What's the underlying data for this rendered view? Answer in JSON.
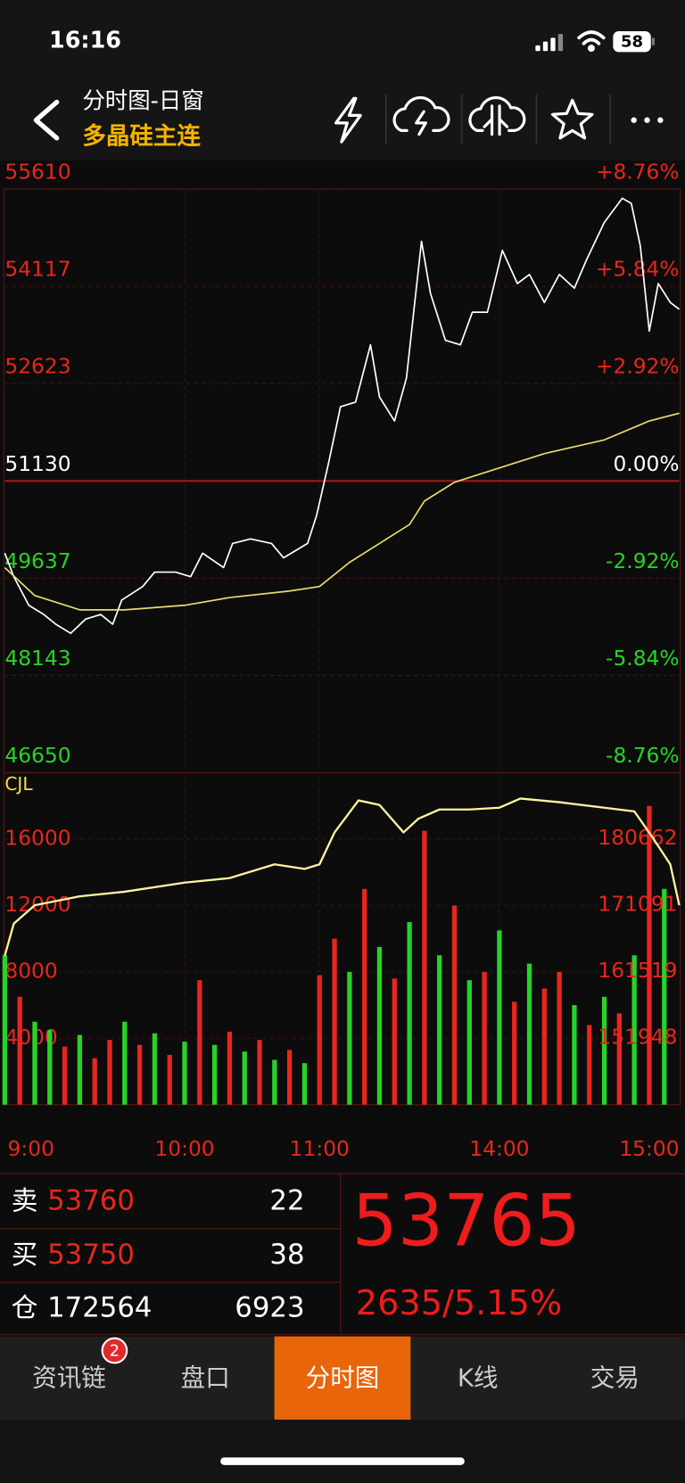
{
  "status_bar": {
    "time": "16:16",
    "battery": "58"
  },
  "header": {
    "title": "分时图-日窗",
    "subtitle": "多晶硅主连"
  },
  "chart_data": [
    {
      "type": "line",
      "xlim": [
        0,
        225
      ],
      "ylim": [
        46650,
        55610
      ],
      "yticks": [
        55610,
        54117,
        52623,
        51130,
        49637,
        48143,
        46650
      ],
      "y2lim": [
        -8.76,
        8.76
      ],
      "y2ticks": [
        {
          "value": 8.76,
          "label": "+8.76%"
        },
        {
          "value": 5.84,
          "label": "+5.84%"
        },
        {
          "value": 2.92,
          "label": "+2.92%"
        },
        {
          "value": 0,
          "label": "0.00%"
        },
        {
          "value": -2.92,
          "label": "-2.92%"
        },
        {
          "value": -5.84,
          "label": "-5.84%"
        },
        {
          "value": -8.76,
          "label": "-8.76%"
        }
      ],
      "up_color": "#e8261e",
      "down_color": "#27d327",
      "grid": true,
      "series": [
        {
          "color": "#ffffff",
          "x": [
            0,
            3,
            8,
            13,
            17,
            22,
            27,
            32,
            36,
            39,
            46,
            50,
            57,
            62,
            66,
            73,
            76,
            82,
            89,
            93,
            101,
            104,
            108,
            112,
            117,
            122,
            125,
            130,
            134,
            139,
            142,
            147,
            152,
            156,
            161,
            166,
            171,
            175,
            180,
            185,
            190,
            194,
            200,
            206,
            209,
            212,
            215,
            218,
            222,
            225
          ],
          "values": [
            50020,
            49660,
            49220,
            49080,
            48930,
            48790,
            49010,
            49080,
            48930,
            49300,
            49510,
            49730,
            49730,
            49660,
            50020,
            49800,
            50170,
            50240,
            50170,
            49950,
            50170,
            50600,
            51400,
            52270,
            52340,
            53220,
            52420,
            52050,
            52710,
            54810,
            54010,
            53290,
            53220,
            53720,
            53720,
            54670,
            54160,
            54300,
            53870,
            54300,
            54090,
            54520,
            55100,
            55470,
            55390,
            54740,
            53430,
            54160,
            53870,
            53765
          ]
        },
        {
          "color": "#e6dc6e",
          "x": [
            0,
            10,
            25,
            40,
            60,
            75,
            95,
            105,
            115,
            125,
            135,
            140,
            150,
            165,
            180,
            200,
            215,
            225
          ],
          "values": [
            49800,
            49370,
            49150,
            49150,
            49220,
            49340,
            49440,
            49510,
            49880,
            50170,
            50460,
            50820,
            51110,
            51330,
            51550,
            51760,
            52050,
            52170
          ]
        }
      ]
    },
    {
      "type": "bar",
      "ylabel": "CJL",
      "xlim": [
        0,
        225
      ],
      "xticks": [
        {
          "value": 0,
          "label": "9:00"
        },
        {
          "value": 60,
          "label": "10:00"
        },
        {
          "value": 105,
          "label": "11:00"
        },
        {
          "value": 165,
          "label": "14:00"
        },
        {
          "value": 225,
          "label": "15:00"
        }
      ],
      "ylim": [
        0,
        20000
      ],
      "yticks": [
        16000,
        12000,
        8000,
        4000
      ],
      "y2lim": [
        142334,
        190184
      ],
      "y2ticks": [
        180662,
        171091,
        161519,
        151948
      ],
      "x": [
        0,
        5,
        10,
        15,
        20,
        25,
        30,
        35,
        40,
        45,
        50,
        55,
        60,
        65,
        70,
        75,
        80,
        85,
        90,
        95,
        100,
        105,
        110,
        115,
        120,
        125,
        130,
        135,
        140,
        145,
        150,
        155,
        160,
        165,
        170,
        175,
        180,
        185,
        190,
        195,
        200,
        205,
        210,
        215,
        220
      ],
      "values": [
        9000,
        6500,
        5000,
        4500,
        3500,
        4200,
        2800,
        3900,
        5000,
        3600,
        4300,
        3000,
        3800,
        7500,
        3600,
        4400,
        3200,
        3900,
        2700,
        3300,
        2500,
        7800,
        10000,
        8000,
        13000,
        9500,
        7600,
        11000,
        16500,
        9000,
        12000,
        7500,
        8000,
        10500,
        6200,
        8500,
        7000,
        8000,
        6000,
        4800,
        6500,
        5500,
        9000,
        18000,
        13000
      ],
      "colors": [
        "#27d327",
        "#e8261e",
        "#27d327",
        "#27d327",
        "#e8261e",
        "#27d327",
        "#e8261e",
        "#e8261e",
        "#27d327",
        "#e8261e",
        "#27d327",
        "#e8261e",
        "#27d327",
        "#e8261e",
        "#27d327",
        "#e8261e",
        "#27d327",
        "#e8261e",
        "#27d327",
        "#e8261e",
        "#27d327",
        "#e8261e",
        "#e8261e",
        "#27d327",
        "#e8261e",
        "#27d327",
        "#e8261e",
        "#27d327",
        "#e8261e",
        "#27d327",
        "#e8261e",
        "#27d327",
        "#e8261e",
        "#27d327",
        "#e8261e",
        "#27d327",
        "#e8261e",
        "#e8261e",
        "#27d327",
        "#e8261e",
        "#27d327",
        "#e8261e",
        "#27d327",
        "#e8261e",
        "#27d327"
      ],
      "label_color": "#e8261e",
      "ylabel_color": "#f2e14a",
      "grid": true,
      "series": [
        {
          "axis": "y2",
          "color": "#fff3a0",
          "x": [
            0,
            3,
            10,
            25,
            40,
            60,
            75,
            90,
            100,
            105,
            110,
            118,
            125,
            133,
            138,
            145,
            155,
            165,
            172,
            185,
            200,
            210,
            216,
            222,
            225
          ],
          "values": [
            163810,
            168420,
            171090,
            172370,
            173030,
            174340,
            175000,
            176980,
            176320,
            176980,
            181580,
            186190,
            185530,
            181580,
            183560,
            184880,
            184880,
            185140,
            186460,
            185930,
            185140,
            184610,
            180920,
            176980,
            171090
          ]
        }
      ]
    }
  ],
  "quote": {
    "rows": [
      {
        "label": "卖",
        "price": 53760,
        "volume": 22
      },
      {
        "label": "买",
        "price": 53750,
        "volume": 38
      },
      {
        "label": "仓",
        "price": 172564,
        "volume": 6923
      }
    ],
    "last": 53765,
    "change": "2635/5.15%"
  },
  "tabs": {
    "items": [
      "资讯链",
      "盘口",
      "分时图",
      "K线",
      "交易"
    ],
    "badge": 2
  }
}
